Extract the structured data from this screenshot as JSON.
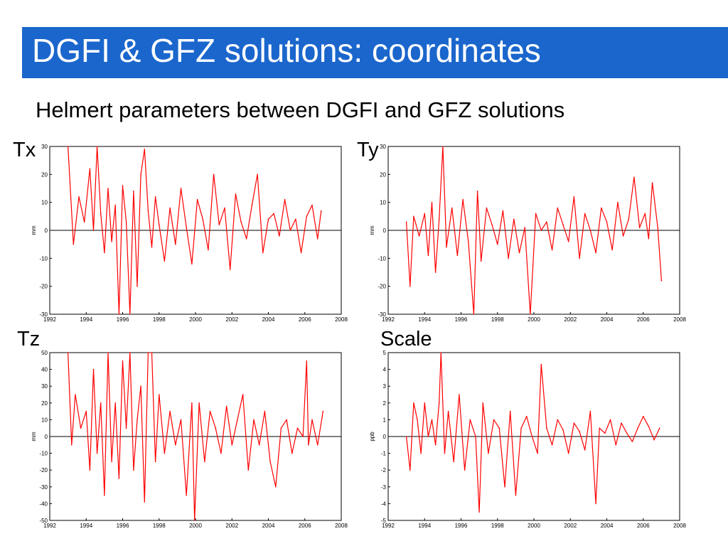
{
  "slide": {
    "title": "DGFI & GFZ solutions: coordinates",
    "subtitle": "Helmert parameters between DGFI and GFZ solutions",
    "title_bar_color": "#1a66cc"
  },
  "chart_data": [
    {
      "type": "line",
      "panel_label": "Tx",
      "ylabel": "mm",
      "xlim": [
        1992,
        2008
      ],
      "ylim": [
        -30,
        30
      ],
      "x_ticks": [
        "1992",
        "1994",
        "1996",
        "1998",
        "2000",
        "2002",
        "2004",
        "2006",
        "2008"
      ],
      "y_ticks": [
        "30",
        "20",
        "10",
        "0",
        "-10",
        "-20",
        "-30"
      ],
      "grid": false,
      "series": [
        {
          "color": "#ff0000",
          "x": [
            1993.0,
            1993.3,
            1993.6,
            1993.9,
            1994.2,
            1994.4,
            1994.6,
            1994.8,
            1995.0,
            1995.2,
            1995.4,
            1995.6,
            1995.8,
            1996.0,
            1996.2,
            1996.4,
            1996.6,
            1996.8,
            1997.0,
            1997.2,
            1997.4,
            1997.6,
            1997.8,
            1998.0,
            1998.3,
            1998.6,
            1998.9,
            1999.2,
            1999.5,
            1999.8,
            2000.1,
            2000.4,
            2000.7,
            2001.0,
            2001.3,
            2001.6,
            2001.9,
            2002.2,
            2002.5,
            2002.8,
            2003.1,
            2003.4,
            2003.7,
            2004.0,
            2004.3,
            2004.6,
            2004.9,
            2005.2,
            2005.5,
            2005.8,
            2006.1,
            2006.4,
            2006.7,
            2006.9
          ],
          "y": [
            30,
            -5,
            12,
            3,
            22,
            0,
            30,
            6,
            -8,
            15,
            -4,
            9,
            -30,
            16,
            3,
            -30,
            14,
            -20,
            20,
            29,
            7,
            -6,
            12,
            2,
            -11,
            8,
            -5,
            15,
            1,
            -12,
            11,
            4,
            -7,
            20,
            2,
            8,
            -14,
            13,
            3,
            -3,
            9,
            20,
            -8,
            4,
            6,
            -2,
            11,
            0,
            4,
            -8,
            5,
            9,
            -3,
            7
          ]
        }
      ]
    },
    {
      "type": "line",
      "panel_label": "Ty",
      "ylabel": "mm",
      "xlim": [
        1992,
        2008
      ],
      "ylim": [
        -30,
        30
      ],
      "x_ticks": [
        "1992",
        "1994",
        "1996",
        "1998",
        "2000",
        "2002",
        "2004",
        "2006",
        "2008"
      ],
      "y_ticks": [
        "30",
        "20",
        "10",
        "0",
        "-10",
        "-20",
        "-30"
      ],
      "grid": false,
      "series": [
        {
          "color": "#ff0000",
          "x": [
            1993.0,
            1993.2,
            1993.4,
            1993.7,
            1994.0,
            1994.2,
            1994.4,
            1994.6,
            1994.8,
            1995.0,
            1995.2,
            1995.5,
            1995.8,
            1996.1,
            1996.4,
            1996.7,
            1996.9,
            1997.1,
            1997.4,
            1997.7,
            1998.0,
            1998.3,
            1998.6,
            1998.9,
            1999.2,
            1999.5,
            1999.8,
            2000.1,
            2000.4,
            2000.7,
            2001.0,
            2001.3,
            2001.6,
            2001.9,
            2002.2,
            2002.5,
            2002.8,
            2003.1,
            2003.4,
            2003.7,
            2004.0,
            2004.3,
            2004.6,
            2004.9,
            2005.2,
            2005.5,
            2005.8,
            2006.1,
            2006.3,
            2006.5,
            2006.8,
            2007.0
          ],
          "y": [
            3,
            -20,
            5,
            -2,
            6,
            -9,
            10,
            -15,
            4,
            30,
            -6,
            8,
            -9,
            11,
            -4,
            -30,
            14,
            -11,
            8,
            2,
            -5,
            7,
            -10,
            4,
            -8,
            1,
            -30,
            6,
            0,
            3,
            -7,
            8,
            2,
            -4,
            12,
            -10,
            6,
            0,
            -8,
            8,
            3,
            -7,
            10,
            -2,
            4,
            19,
            1,
            6,
            -3,
            17,
            1,
            -18
          ]
        }
      ]
    },
    {
      "type": "line",
      "panel_label": "Tz",
      "ylabel": "mm",
      "xlim": [
        1992,
        2008
      ],
      "ylim": [
        -50,
        50
      ],
      "x_ticks": [
        "1992",
        "1994",
        "1996",
        "1998",
        "2000",
        "2002",
        "2004",
        "2006",
        "2008"
      ],
      "y_ticks": [
        "50",
        "40",
        "30",
        "20",
        "10",
        "0",
        "-10",
        "-20",
        "-30",
        "-40",
        "-50"
      ],
      "grid": false,
      "series": [
        {
          "color": "#ff0000",
          "x": [
            1993.0,
            1993.2,
            1993.4,
            1993.7,
            1994.0,
            1994.2,
            1994.4,
            1994.6,
            1994.8,
            1995.0,
            1995.2,
            1995.4,
            1995.6,
            1995.8,
            1996.0,
            1996.2,
            1996.4,
            1996.6,
            1996.8,
            1997.0,
            1997.2,
            1997.4,
            1997.6,
            1997.8,
            1998.0,
            1998.3,
            1998.6,
            1998.9,
            1999.2,
            1999.5,
            1999.8,
            1999.95,
            2000.2,
            2000.5,
            2000.8,
            2001.1,
            2001.4,
            2001.7,
            2002.0,
            2002.3,
            2002.6,
            2002.9,
            2003.2,
            2003.5,
            2003.8,
            2004.1,
            2004.4,
            2004.7,
            2005.0,
            2005.3,
            2005.6,
            2005.9,
            2006.1,
            2006.2,
            2006.4,
            2006.7,
            2007.0
          ],
          "y": [
            50,
            -5,
            25,
            5,
            15,
            -20,
            40,
            -10,
            20,
            -35,
            50,
            -15,
            20,
            -25,
            45,
            5,
            50,
            -20,
            10,
            30,
            -39,
            50,
            50,
            -15,
            25,
            -10,
            15,
            -5,
            10,
            -35,
            20,
            -50,
            20,
            -15,
            15,
            5,
            -10,
            18,
            -5,
            10,
            25,
            -20,
            10,
            -5,
            15,
            -15,
            -30,
            5,
            10,
            -10,
            5,
            0,
            45,
            -5,
            10,
            -5,
            15
          ]
        }
      ]
    },
    {
      "type": "line",
      "panel_label": "Scale",
      "ylabel": "ppb",
      "xlim": [
        1992,
        2008
      ],
      "ylim": [
        -5,
        5
      ],
      "x_ticks": [
        "1992",
        "1994",
        "1996",
        "1998",
        "2000",
        "2002",
        "2004",
        "2006",
        "2008"
      ],
      "y_ticks": [
        "5",
        "4",
        "3",
        "2",
        "1",
        "0",
        "-1",
        "-2",
        "-3",
        "-4",
        "-5"
      ],
      "grid": false,
      "series": [
        {
          "color": "#ff0000",
          "x": [
            1993.0,
            1993.2,
            1993.4,
            1993.6,
            1993.8,
            1994.0,
            1994.2,
            1994.4,
            1994.6,
            1994.8,
            1994.9,
            1995.1,
            1995.3,
            1995.6,
            1995.9,
            1996.2,
            1996.5,
            1996.8,
            1997.0,
            1997.2,
            1997.5,
            1997.8,
            1998.1,
            1998.4,
            1998.7,
            1999.0,
            1999.3,
            1999.6,
            1999.9,
            2000.2,
            2000.4,
            2000.7,
            2001.0,
            2001.3,
            2001.6,
            2001.9,
            2002.2,
            2002.5,
            2002.8,
            2003.1,
            2003.4,
            2003.6,
            2003.9,
            2004.2,
            2004.5,
            2004.8,
            2005.1,
            2005.4,
            2005.7,
            2006.0,
            2006.3,
            2006.6,
            2006.9
          ],
          "y": [
            0,
            -2,
            2,
            1,
            -1,
            2,
            0,
            1,
            -0.5,
            2,
            5,
            -1,
            1.5,
            -1.5,
            2.5,
            -2,
            1,
            0,
            -4.5,
            2,
            -1,
            1,
            0.5,
            -3,
            1.5,
            -3.5,
            0.5,
            1.2,
            0,
            -1,
            4.3,
            0.5,
            -0.5,
            1,
            0.4,
            -1,
            0.8,
            0.3,
            -0.8,
            1.5,
            -4,
            0.5,
            0.2,
            1,
            -0.5,
            0.8,
            0.2,
            -0.3,
            0.5,
            1.2,
            0.6,
            -0.2,
            0.5
          ]
        }
      ]
    }
  ]
}
